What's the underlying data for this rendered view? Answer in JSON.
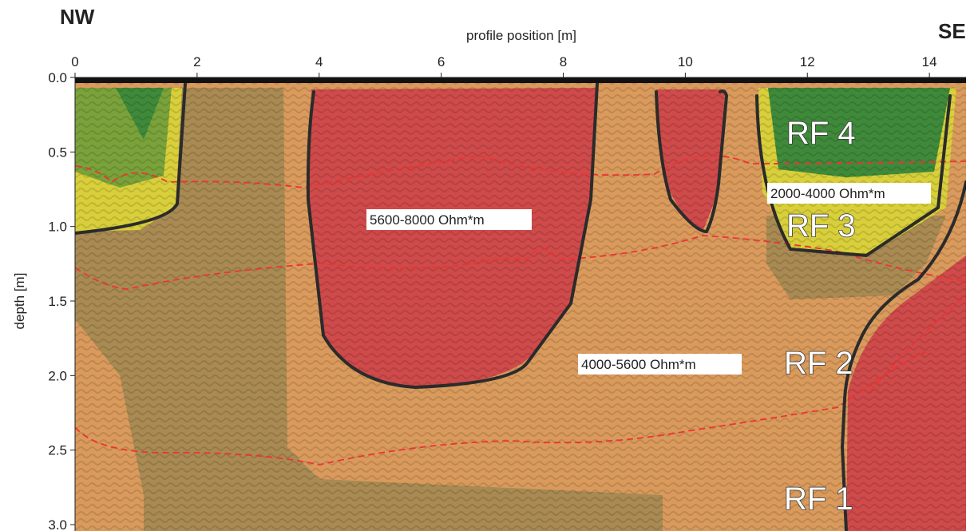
{
  "chart_data": {
    "type": "profile",
    "left_label": "NW",
    "right_label": "SE",
    "xlabel": "profile position [m]",
    "ylabel": "depth [m]",
    "xlim": [
      0,
      14.6
    ],
    "ylim": [
      0,
      3
    ],
    "xticks": [
      0,
      2,
      4,
      6,
      8,
      10,
      12,
      14
    ],
    "yticks": [
      {
        "value": 0,
        "label": "0.0"
      },
      0.5,
      {
        "value": 1,
        "label": "1.0"
      },
      1.5,
      {
        "value": 2,
        "label": "2.0"
      },
      2.5,
      {
        "value": 3,
        "label": "3.0"
      }
    ],
    "annotations": [
      "RF 4",
      "RF 3",
      "RF 2",
      "RF 1",
      "5600-8000 Ohm*m",
      "4000-5600 Ohm*m",
      "2000-4000 Ohm*m"
    ]
  }
}
